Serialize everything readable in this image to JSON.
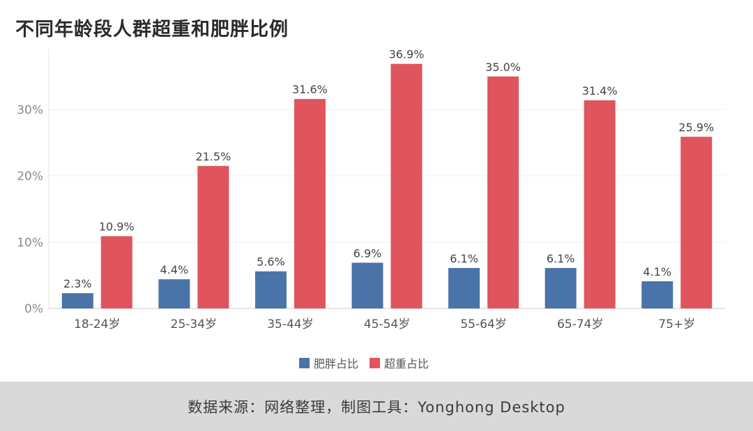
{
  "title": "不同年龄段人群超重和肥胖比例",
  "footer": "数据来源：网络整理，制图工具：Yonghong Desktop",
  "chart_data": {
    "type": "bar",
    "title": "不同年龄段人群超重和肥胖比例",
    "xlabel": "",
    "ylabel": "",
    "categories": [
      "18-24岁",
      "25-34岁",
      "35-44岁",
      "45-54岁",
      "55-64岁",
      "65-74岁",
      "75+岁"
    ],
    "series": [
      {
        "name": "肥胖占比",
        "color": "#4a73a8",
        "values": [
          2.3,
          4.4,
          5.6,
          6.9,
          6.1,
          6.1,
          4.1
        ],
        "labels": [
          "2.3%",
          "4.4%",
          "5.6%",
          "6.9%",
          "6.1%",
          "6.1%",
          "4.1%"
        ]
      },
      {
        "name": "超重占比",
        "color": "#e0545e",
        "values": [
          10.9,
          21.5,
          31.6,
          36.9,
          35.0,
          31.4,
          25.9
        ],
        "labels": [
          "10.9%",
          "21.5%",
          "31.6%",
          "36.9%",
          "35.0%",
          "31.4%",
          "25.9%"
        ]
      }
    ],
    "yticks": [
      0,
      10,
      20,
      30
    ],
    "ytick_labels": [
      "0%",
      "10%",
      "20%",
      "30%"
    ],
    "ylim": [
      0,
      37.5
    ],
    "grid": true,
    "legend": "bottom-center"
  }
}
